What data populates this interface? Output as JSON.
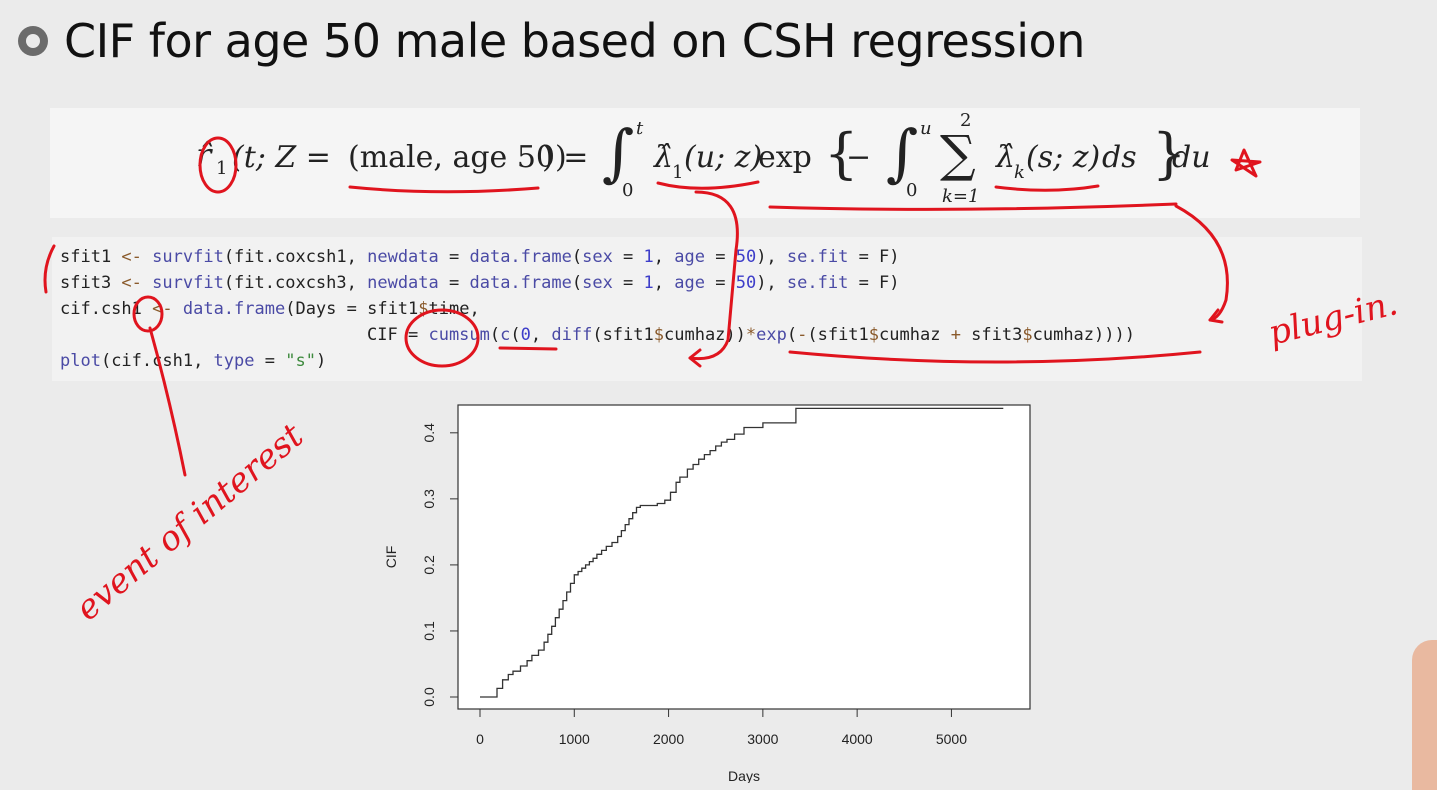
{
  "slide": {
    "title": "CIF for age 50 male based on CSH regression"
  },
  "formula": {
    "r_hat": "r̂",
    "r_sub": "1",
    "lhs_args": "(t; Z = ",
    "lhs_group": "(male, age 50)",
    "lhs_close": ") = ",
    "int1_upper": "t",
    "int1_lower": "0",
    "lambda1": "λ̂",
    "lambda1_sub": "1",
    "lambda1_args": "(u; z)",
    "exp": " exp",
    "brace_open": "{",
    "minus": " − ",
    "int2_upper": "u",
    "int2_lower": "0",
    "sum_upper": "2",
    "sum_lower": "k=1",
    "lambdak": "λ̂",
    "lambdak_sub": "k",
    "lambdak_args": "(s; z)",
    "ds": " ds",
    "brace_close": "}",
    "du": " du"
  },
  "code": {
    "lines": [
      [
        {
          "t": "sfit1 ",
          "c": ""
        },
        {
          "t": "<-",
          "c": "kw-op"
        },
        {
          "t": " ",
          "c": ""
        },
        {
          "t": "survfit",
          "c": "fn"
        },
        {
          "t": "(fit.coxcsh1, ",
          "c": ""
        },
        {
          "t": "newdata",
          "c": "fn"
        },
        {
          "t": " = ",
          "c": ""
        },
        {
          "t": "data.frame",
          "c": "fn"
        },
        {
          "t": "(",
          "c": ""
        },
        {
          "t": "sex",
          "c": "fn"
        },
        {
          "t": " = ",
          "c": ""
        },
        {
          "t": "1",
          "c": "num"
        },
        {
          "t": ", ",
          "c": ""
        },
        {
          "t": "age",
          "c": "fn"
        },
        {
          "t": " = ",
          "c": ""
        },
        {
          "t": "50",
          "c": "num"
        },
        {
          "t": "), ",
          "c": ""
        },
        {
          "t": "se.fit",
          "c": "fn"
        },
        {
          "t": " = F)",
          "c": ""
        }
      ],
      [
        {
          "t": "sfit3 ",
          "c": ""
        },
        {
          "t": "<-",
          "c": "kw-op"
        },
        {
          "t": " ",
          "c": ""
        },
        {
          "t": "survfit",
          "c": "fn"
        },
        {
          "t": "(fit.coxcsh3, ",
          "c": ""
        },
        {
          "t": "newdata",
          "c": "fn"
        },
        {
          "t": " = ",
          "c": ""
        },
        {
          "t": "data.frame",
          "c": "fn"
        },
        {
          "t": "(",
          "c": ""
        },
        {
          "t": "sex",
          "c": "fn"
        },
        {
          "t": " = ",
          "c": ""
        },
        {
          "t": "1",
          "c": "num"
        },
        {
          "t": ", ",
          "c": ""
        },
        {
          "t": "age",
          "c": "fn"
        },
        {
          "t": " = ",
          "c": ""
        },
        {
          "t": "50",
          "c": "num"
        },
        {
          "t": "), ",
          "c": ""
        },
        {
          "t": "se.fit",
          "c": "fn"
        },
        {
          "t": " = F)",
          "c": ""
        }
      ],
      [
        {
          "t": "cif.csh1 ",
          "c": ""
        },
        {
          "t": "<-",
          "c": "kw-op"
        },
        {
          "t": " ",
          "c": ""
        },
        {
          "t": "data.frame",
          "c": "fn"
        },
        {
          "t": "(Days = sfit1",
          "c": ""
        },
        {
          "t": "$",
          "c": "kw-op"
        },
        {
          "t": "time,",
          "c": ""
        }
      ],
      [
        {
          "t": "                              CIF = ",
          "c": ""
        },
        {
          "t": "cumsum",
          "c": "fn"
        },
        {
          "t": "(",
          "c": ""
        },
        {
          "t": "c",
          "c": "fn"
        },
        {
          "t": "(",
          "c": ""
        },
        {
          "t": "0",
          "c": "num"
        },
        {
          "t": ", ",
          "c": ""
        },
        {
          "t": "diff",
          "c": "fn"
        },
        {
          "t": "(sfit1",
          "c": ""
        },
        {
          "t": "$",
          "c": "kw-op"
        },
        {
          "t": "cumhaz))",
          "c": ""
        },
        {
          "t": "*",
          "c": "kw-op"
        },
        {
          "t": "exp",
          "c": "fn"
        },
        {
          "t": "(",
          "c": ""
        },
        {
          "t": "-",
          "c": "kw-op"
        },
        {
          "t": "(sfit1",
          "c": ""
        },
        {
          "t": "$",
          "c": "kw-op"
        },
        {
          "t": "cumhaz ",
          "c": ""
        },
        {
          "t": "+",
          "c": "kw-op"
        },
        {
          "t": " sfit3",
          "c": ""
        },
        {
          "t": "$",
          "c": "kw-op"
        },
        {
          "t": "cumhaz))))",
          "c": ""
        }
      ],
      [
        {
          "t": "plot",
          "c": "fn"
        },
        {
          "t": "(cif.csh1, ",
          "c": ""
        },
        {
          "t": "type",
          "c": "fn"
        },
        {
          "t": " = ",
          "c": ""
        },
        {
          "t": "\"s\"",
          "c": "str"
        },
        {
          "t": ")",
          "c": ""
        }
      ]
    ]
  },
  "annotations": {
    "plug_in": "plug-in.",
    "event_of_interest": "event of interest"
  },
  "colors": {
    "ink": "#e0141e",
    "operator": "#8a5a2b",
    "function": "#4a4aa5",
    "number": "#3d3dc9",
    "string": "#3e8a3e"
  },
  "chart_data": {
    "type": "line",
    "step": true,
    "title": "",
    "xlabel": "Days",
    "ylabel": "CIF",
    "xlim": [
      0,
      5600
    ],
    "ylim": [
      0,
      0.43
    ],
    "xticks": [
      0,
      1000,
      2000,
      3000,
      4000,
      5000
    ],
    "yticks": [
      0.0,
      0.1,
      0.2,
      0.3,
      0.4
    ],
    "grid": false,
    "series": [
      {
        "x": [
          0,
          180,
          240,
          300,
          350,
          430,
          500,
          550,
          620,
          680,
          720,
          760,
          800,
          840,
          880,
          920,
          960,
          1000,
          1040,
          1080,
          1120,
          1160,
          1200,
          1240,
          1290,
          1340,
          1400,
          1460,
          1500,
          1540,
          1580,
          1620,
          1660,
          1700,
          1740,
          1800,
          1880,
          1960,
          2020,
          2080,
          2120,
          2200,
          2260,
          2320,
          2380,
          2440,
          2500,
          2560,
          2620,
          2700,
          2800,
          3000,
          3350,
          5550
        ],
        "y": [
          0.0,
          0.013,
          0.026,
          0.034,
          0.039,
          0.047,
          0.055,
          0.063,
          0.071,
          0.083,
          0.095,
          0.107,
          0.12,
          0.133,
          0.146,
          0.159,
          0.172,
          0.185,
          0.19,
          0.195,
          0.2,
          0.205,
          0.21,
          0.216,
          0.222,
          0.228,
          0.234,
          0.243,
          0.252,
          0.261,
          0.27,
          0.279,
          0.287,
          0.29,
          0.29,
          0.29,
          0.293,
          0.298,
          0.31,
          0.325,
          0.333,
          0.345,
          0.352,
          0.36,
          0.367,
          0.373,
          0.38,
          0.386,
          0.39,
          0.398,
          0.408,
          0.415,
          0.437,
          0.437
        ]
      }
    ]
  }
}
